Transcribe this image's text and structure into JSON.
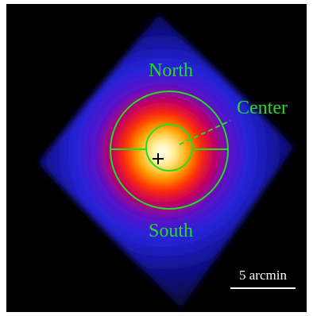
{
  "regions": {
    "north": "North",
    "center": "Center",
    "south": "South"
  },
  "scale_bar": {
    "label": "5 arcmin"
  }
}
